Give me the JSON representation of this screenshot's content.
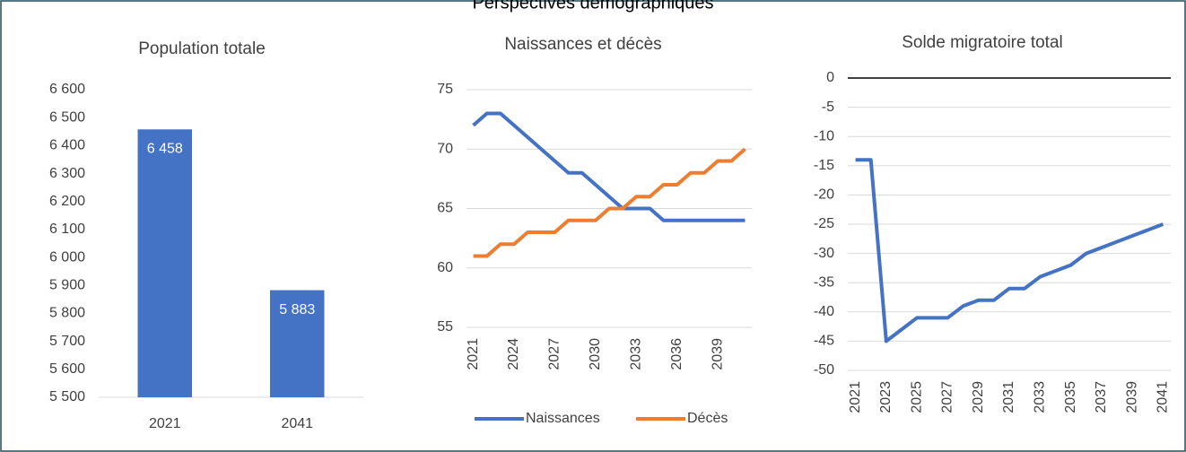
{
  "title": "Perspectives démographiques",
  "chart_data": [
    {
      "type": "bar",
      "title": "Population totale",
      "categories": [
        "2021",
        "2041"
      ],
      "values": [
        6458,
        5883
      ],
      "value_labels": [
        "6 458",
        "5 883"
      ],
      "color": "#4472c4",
      "ylim": [
        5500,
        6600
      ],
      "yticks": [
        {
          "value": 5500,
          "label": "5 500"
        },
        {
          "value": 5600,
          "label": "5 600"
        },
        {
          "value": 5700,
          "label": "5 700"
        },
        {
          "value": 5800,
          "label": "5 800"
        },
        {
          "value": 5900,
          "label": "5 900"
        },
        {
          "value": 6000,
          "label": "6 000"
        },
        {
          "value": 6100,
          "label": "6 100"
        },
        {
          "value": 6200,
          "label": "6 200"
        },
        {
          "value": 6300,
          "label": "6 300"
        },
        {
          "value": 6400,
          "label": "6 400"
        },
        {
          "value": 6500,
          "label": "6 500"
        },
        {
          "value": 6600,
          "label": "6 600"
        }
      ],
      "grid": false
    },
    {
      "type": "line",
      "title": "Naissances et décès",
      "x": [
        2021,
        2022,
        2023,
        2024,
        2025,
        2026,
        2027,
        2028,
        2029,
        2030,
        2031,
        2032,
        2033,
        2034,
        2035,
        2036,
        2037,
        2038,
        2039,
        2040,
        2041
      ],
      "xlim": [
        2020.5,
        2041.5
      ],
      "xticks": [
        2021,
        2024,
        2027,
        2030,
        2033,
        2036,
        2039
      ],
      "series": [
        {
          "name": "Naissances",
          "color": "#4472c4",
          "values": [
            72,
            73,
            73,
            72,
            71,
            70,
            69,
            68,
            68,
            67,
            66,
            65,
            65,
            65,
            64,
            64,
            64,
            64,
            64,
            64,
            64
          ]
        },
        {
          "name": "Décès",
          "color": "#ed7d31",
          "values": [
            61,
            61,
            62,
            62,
            63,
            63,
            63,
            64,
            64,
            64,
            65,
            65,
            66,
            66,
            67,
            67,
            68,
            68,
            69,
            69,
            70
          ]
        }
      ],
      "ylim": [
        55,
        75
      ],
      "yticks": [
        55,
        60,
        65,
        70,
        75
      ],
      "grid": true,
      "legend": "bottom"
    },
    {
      "type": "line",
      "title": "Solde migratoire total",
      "x": [
        2021,
        2022,
        2023,
        2024,
        2025,
        2026,
        2027,
        2028,
        2029,
        2030,
        2031,
        2032,
        2033,
        2034,
        2035,
        2036,
        2037,
        2038,
        2039,
        2040,
        2041
      ],
      "xlim": [
        2020.5,
        2041.5
      ],
      "xticks": [
        2021,
        2023,
        2025,
        2027,
        2029,
        2031,
        2033,
        2035,
        2037,
        2039,
        2041
      ],
      "series": [
        {
          "color": "#4472c4",
          "values": [
            -14,
            -14,
            -45,
            -43,
            -41,
            -41,
            -41,
            -39,
            -38,
            -38,
            -36,
            -36,
            -34,
            -33,
            -32,
            -30,
            -29,
            -28,
            -27,
            -26,
            -25
          ]
        }
      ],
      "ylim": [
        -50,
        0
      ],
      "yticks": [
        -50,
        -45,
        -40,
        -35,
        -30,
        -25,
        -20,
        -15,
        -10,
        -5,
        0
      ],
      "grid": true
    }
  ]
}
